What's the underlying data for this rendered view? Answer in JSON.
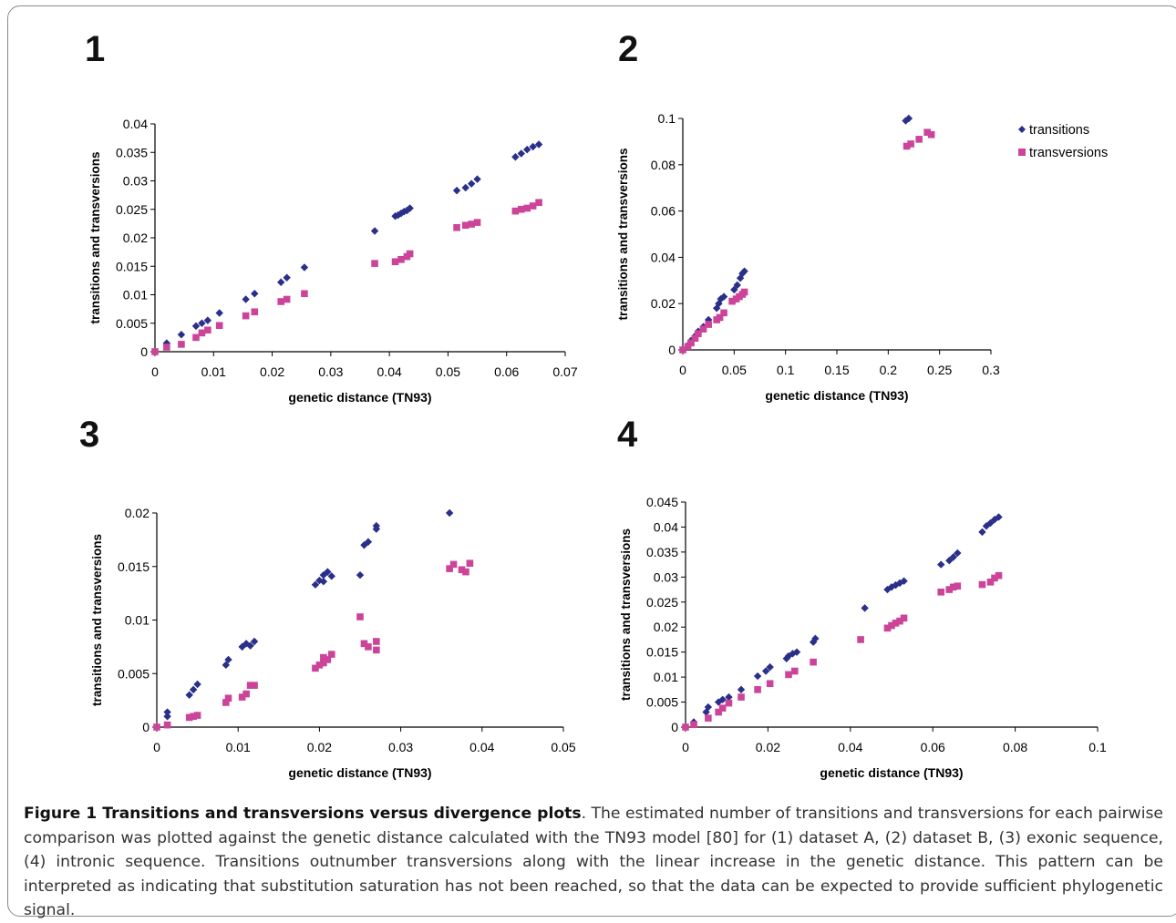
{
  "panels": [
    {
      "number": "1"
    },
    {
      "number": "2"
    },
    {
      "number": "3"
    },
    {
      "number": "4"
    }
  ],
  "legend": {
    "transitions": "transitions",
    "transversions": "transversions"
  },
  "colors": {
    "transitions": "#2a2f8a",
    "transversions": "#cc4499",
    "axis": "#000000"
  },
  "caption": {
    "title": "Figure 1 Transitions and transversions versus divergence plots",
    "body": ". The estimated number of transitions and transversions for each pairwise comparison was plotted against the genetic distance calculated with the TN93 model [80] for (1) dataset A, (2) dataset B, (3) exonic sequence, (4) intronic sequence. Transitions outnumber transversions along with the linear increase in the genetic distance. This pattern can be interpreted as indicating that substitution saturation has not been reached, so that the data can be expected to provide sufficient phylogenetic signal."
  },
  "chart_data": [
    {
      "type": "scatter",
      "panel": "1",
      "xlabel": "genetic distance (TN93)",
      "ylabel": "transitions and transversions",
      "xlim": [
        0,
        0.07
      ],
      "ylim": [
        0,
        0.04
      ],
      "xticks": [
        "0",
        "0.01",
        "0.02",
        "0.03",
        "0.04",
        "0.05",
        "0.06",
        "0.07"
      ],
      "yticks": [
        "0",
        "0.005",
        "0.01",
        "0.015",
        "0.02",
        "0.025",
        "0.03",
        "0.035",
        "0.04"
      ],
      "legend": null,
      "series": [
        {
          "name": "transitions",
          "marker": "diamond",
          "points": [
            [
              0,
              0
            ],
            [
              0.002,
              0.0015
            ],
            [
              0.0045,
              0.003
            ],
            [
              0.007,
              0.0045
            ],
            [
              0.008,
              0.005
            ],
            [
              0.009,
              0.0055
            ],
            [
              0.011,
              0.0068
            ],
            [
              0.0155,
              0.0092
            ],
            [
              0.017,
              0.0102
            ],
            [
              0.0215,
              0.0122
            ],
            [
              0.0225,
              0.013
            ],
            [
              0.0255,
              0.0148
            ],
            [
              0.0375,
              0.0212
            ],
            [
              0.041,
              0.0238
            ],
            [
              0.0415,
              0.024
            ],
            [
              0.042,
              0.0243
            ],
            [
              0.0425,
              0.0246
            ],
            [
              0.043,
              0.0248
            ],
            [
              0.0435,
              0.0252
            ],
            [
              0.0515,
              0.0283
            ],
            [
              0.053,
              0.0288
            ],
            [
              0.054,
              0.0295
            ],
            [
              0.055,
              0.0303
            ],
            [
              0.0615,
              0.0342
            ],
            [
              0.0625,
              0.0348
            ],
            [
              0.0635,
              0.0355
            ],
            [
              0.0645,
              0.036
            ],
            [
              0.0655,
              0.0364
            ]
          ]
        },
        {
          "name": "transversions",
          "marker": "square",
          "points": [
            [
              0,
              0
            ],
            [
              0.002,
              0.0008
            ],
            [
              0.0045,
              0.0013
            ],
            [
              0.007,
              0.0025
            ],
            [
              0.008,
              0.0033
            ],
            [
              0.009,
              0.0038
            ],
            [
              0.011,
              0.0046
            ],
            [
              0.0155,
              0.0063
            ],
            [
              0.017,
              0.007
            ],
            [
              0.0215,
              0.0088
            ],
            [
              0.0225,
              0.0092
            ],
            [
              0.0255,
              0.0102
            ],
            [
              0.0375,
              0.0155
            ],
            [
              0.041,
              0.0158
            ],
            [
              0.042,
              0.0162
            ],
            [
              0.043,
              0.0167
            ],
            [
              0.0435,
              0.0172
            ],
            [
              0.0515,
              0.0218
            ],
            [
              0.053,
              0.0222
            ],
            [
              0.054,
              0.0224
            ],
            [
              0.055,
              0.0227
            ],
            [
              0.0615,
              0.0247
            ],
            [
              0.0625,
              0.025
            ],
            [
              0.0635,
              0.0252
            ],
            [
              0.0645,
              0.0256
            ],
            [
              0.0655,
              0.0262
            ]
          ]
        }
      ]
    },
    {
      "type": "scatter",
      "panel": "2",
      "xlabel": "genetic distance (TN93)",
      "ylabel": "transitions and transversions",
      "xlim": [
        0,
        0.3
      ],
      "ylim": [
        0,
        0.1
      ],
      "xticks": [
        "0",
        "0.05",
        "0.1",
        "0.15",
        "0.2",
        "0.25",
        "0.3"
      ],
      "yticks": [
        "0",
        "0.02",
        "0.04",
        "0.06",
        "0.08",
        "0.1"
      ],
      "legend": "top-right",
      "series": [
        {
          "name": "transitions",
          "marker": "diamond",
          "points": [
            [
              0,
              0
            ],
            [
              0.005,
              0.002
            ],
            [
              0.008,
              0.004
            ],
            [
              0.012,
              0.006
            ],
            [
              0.015,
              0.008
            ],
            [
              0.02,
              0.01
            ],
            [
              0.025,
              0.013
            ],
            [
              0.033,
              0.018
            ],
            [
              0.035,
              0.02
            ],
            [
              0.037,
              0.022
            ],
            [
              0.04,
              0.023
            ],
            [
              0.05,
              0.026
            ],
            [
              0.053,
              0.028
            ],
            [
              0.056,
              0.031
            ],
            [
              0.058,
              0.033
            ],
            [
              0.06,
              0.034
            ],
            [
              0.217,
              0.099
            ],
            [
              0.22,
              0.1
            ]
          ]
        },
        {
          "name": "transversions",
          "marker": "square",
          "points": [
            [
              0,
              0
            ],
            [
              0.005,
              0.0015
            ],
            [
              0.008,
              0.003
            ],
            [
              0.012,
              0.005
            ],
            [
              0.015,
              0.007
            ],
            [
              0.02,
              0.009
            ],
            [
              0.025,
              0.011
            ],
            [
              0.033,
              0.013
            ],
            [
              0.036,
              0.014
            ],
            [
              0.04,
              0.016
            ],
            [
              0.048,
              0.021
            ],
            [
              0.052,
              0.022
            ],
            [
              0.055,
              0.023
            ],
            [
              0.058,
              0.024
            ],
            [
              0.06,
              0.025
            ],
            [
              0.218,
              0.088
            ],
            [
              0.222,
              0.089
            ],
            [
              0.23,
              0.091
            ],
            [
              0.238,
              0.094
            ],
            [
              0.242,
              0.093
            ]
          ]
        }
      ]
    },
    {
      "type": "scatter",
      "panel": "3",
      "xlabel": "genetic distance (TN93)",
      "ylabel": "transitions and transversions",
      "xlim": [
        0,
        0.05
      ],
      "ylim": [
        0,
        0.02
      ],
      "xticks": [
        "0",
        "0.01",
        "0.02",
        "0.03",
        "0.04",
        "0.05"
      ],
      "yticks": [
        "0",
        "0.005",
        "0.01",
        "0.015",
        "0.02"
      ],
      "legend": null,
      "series": [
        {
          "name": "transitions",
          "marker": "diamond",
          "points": [
            [
              0,
              0
            ],
            [
              0.0013,
              0.001
            ],
            [
              0.0013,
              0.0014
            ],
            [
              0.004,
              0.003
            ],
            [
              0.0045,
              0.0035
            ],
            [
              0.005,
              0.004
            ],
            [
              0.0085,
              0.0058
            ],
            [
              0.0088,
              0.0063
            ],
            [
              0.0105,
              0.0075
            ],
            [
              0.011,
              0.0078
            ],
            [
              0.0115,
              0.0076
            ],
            [
              0.012,
              0.008
            ],
            [
              0.0195,
              0.0133
            ],
            [
              0.02,
              0.0137
            ],
            [
              0.0205,
              0.0142
            ],
            [
              0.021,
              0.0145
            ],
            [
              0.0215,
              0.0141
            ],
            [
              0.0205,
              0.0136
            ],
            [
              0.025,
              0.0142
            ],
            [
              0.0255,
              0.017
            ],
            [
              0.026,
              0.0173
            ],
            [
              0.027,
              0.0185
            ],
            [
              0.027,
              0.0188
            ],
            [
              0.036,
              0.02
            ]
          ]
        },
        {
          "name": "transversions",
          "marker": "square",
          "points": [
            [
              0,
              0
            ],
            [
              0.0013,
              0.0002
            ],
            [
              0.004,
              0.0009
            ],
            [
              0.0045,
              0.001
            ],
            [
              0.005,
              0.0011
            ],
            [
              0.0085,
              0.0023
            ],
            [
              0.0088,
              0.0027
            ],
            [
              0.0105,
              0.0028
            ],
            [
              0.011,
              0.0031
            ],
            [
              0.0115,
              0.0039
            ],
            [
              0.012,
              0.0039
            ],
            [
              0.0195,
              0.0055
            ],
            [
              0.02,
              0.0058
            ],
            [
              0.0205,
              0.006
            ],
            [
              0.021,
              0.0063
            ],
            [
              0.0215,
              0.0068
            ],
            [
              0.0205,
              0.0065
            ],
            [
              0.025,
              0.0103
            ],
            [
              0.0255,
              0.0078
            ],
            [
              0.026,
              0.0075
            ],
            [
              0.027,
              0.0072
            ],
            [
              0.027,
              0.008
            ],
            [
              0.036,
              0.0148
            ],
            [
              0.0365,
              0.0152
            ],
            [
              0.0375,
              0.0147
            ],
            [
              0.038,
              0.0145
            ],
            [
              0.0385,
              0.0153
            ]
          ]
        }
      ]
    },
    {
      "type": "scatter",
      "panel": "4",
      "xlabel": "genetic distance (TN93)",
      "ylabel": "transitions and transversions",
      "xlim": [
        0,
        0.1
      ],
      "ylim": [
        0,
        0.045
      ],
      "xticks": [
        "0",
        "0.02",
        "0.04",
        "0.06",
        "0.08",
        "0.1"
      ],
      "yticks": [
        "0",
        "0.005",
        "0.01",
        "0.015",
        "0.02",
        "0.025",
        "0.03",
        "0.035",
        "0.04",
        "0.045"
      ],
      "legend": null,
      "series": [
        {
          "name": "transitions",
          "marker": "diamond",
          "points": [
            [
              0,
              0
            ],
            [
              0.002,
              0.001
            ],
            [
              0.005,
              0.003
            ],
            [
              0.0055,
              0.004
            ],
            [
              0.008,
              0.005
            ],
            [
              0.009,
              0.0055
            ],
            [
              0.0105,
              0.006
            ],
            [
              0.0135,
              0.0075
            ],
            [
              0.0175,
              0.0102
            ],
            [
              0.0195,
              0.0112
            ],
            [
              0.0205,
              0.012
            ],
            [
              0.0245,
              0.0137
            ],
            [
              0.025,
              0.0142
            ],
            [
              0.026,
              0.0147
            ],
            [
              0.027,
              0.015
            ],
            [
              0.031,
              0.017
            ],
            [
              0.0315,
              0.0177
            ],
            [
              0.0435,
              0.0238
            ],
            [
              0.049,
              0.0275
            ],
            [
              0.05,
              0.028
            ],
            [
              0.051,
              0.0284
            ],
            [
              0.052,
              0.0288
            ],
            [
              0.053,
              0.0292
            ],
            [
              0.062,
              0.0325
            ],
            [
              0.064,
              0.0333
            ],
            [
              0.065,
              0.034
            ],
            [
              0.066,
              0.0348
            ],
            [
              0.072,
              0.039
            ],
            [
              0.073,
              0.0402
            ],
            [
              0.074,
              0.0408
            ],
            [
              0.075,
              0.0415
            ],
            [
              0.076,
              0.042
            ]
          ]
        },
        {
          "name": "transversions",
          "marker": "square",
          "points": [
            [
              0,
              0
            ],
            [
              0.002,
              0.0005
            ],
            [
              0.0055,
              0.0018
            ],
            [
              0.008,
              0.003
            ],
            [
              0.009,
              0.0038
            ],
            [
              0.0105,
              0.0048
            ],
            [
              0.0135,
              0.006
            ],
            [
              0.0175,
              0.0075
            ],
            [
              0.0205,
              0.0087
            ],
            [
              0.025,
              0.0105
            ],
            [
              0.0265,
              0.0112
            ],
            [
              0.031,
              0.013
            ],
            [
              0.0425,
              0.0175
            ],
            [
              0.049,
              0.0198
            ],
            [
              0.05,
              0.0203
            ],
            [
              0.051,
              0.0208
            ],
            [
              0.052,
              0.0212
            ],
            [
              0.053,
              0.0218
            ],
            [
              0.062,
              0.027
            ],
            [
              0.064,
              0.0275
            ],
            [
              0.065,
              0.028
            ],
            [
              0.066,
              0.0282
            ],
            [
              0.072,
              0.0285
            ],
            [
              0.074,
              0.029
            ],
            [
              0.075,
              0.0298
            ],
            [
              0.076,
              0.0303
            ]
          ]
        }
      ]
    }
  ]
}
